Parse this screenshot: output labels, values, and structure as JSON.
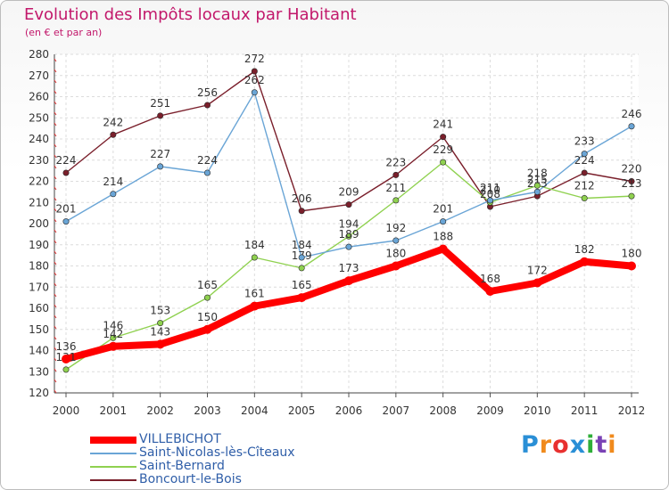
{
  "header": {
    "title": "Evolution des Impôts locaux par Habitant",
    "subtitle": "(en € et par an)"
  },
  "logo": {
    "letters": [
      "P",
      "r",
      "o",
      "x",
      "i",
      "t",
      "i"
    ],
    "colors": [
      "#2a8fd6",
      "#f08a1c",
      "#e8302f",
      "#2a8fd6",
      "#2fae39",
      "#7a42b5",
      "#f08a1c"
    ]
  },
  "chart_data": {
    "type": "line",
    "title": "Evolution des Impôts locaux par Habitant",
    "subtitle": "(en € et par an)",
    "xlabel": "",
    "ylabel": "",
    "ylim": [
      120,
      280
    ],
    "yticks": [
      120,
      130,
      140,
      150,
      160,
      170,
      180,
      190,
      200,
      210,
      220,
      230,
      240,
      250,
      260,
      270,
      280
    ],
    "grid": true,
    "legend_position": "bottom-left",
    "categories": [
      "2000",
      "2001",
      "2002",
      "2003",
      "2004",
      "2005",
      "2006",
      "2007",
      "2008",
      "2009",
      "2010",
      "2011",
      "2012"
    ],
    "series": [
      {
        "name": "Boncourt-le-Bois",
        "color": "#7a1f2b",
        "values": [
          224,
          242,
          251,
          256,
          272,
          206,
          209,
          223,
          241,
          208,
          213,
          224,
          220
        ]
      },
      {
        "name": "Saint-Bernard",
        "color": "#8fd14f",
        "values": [
          131,
          146,
          153,
          165,
          184,
          179,
          194,
          211,
          229,
          210,
          218,
          212,
          213
        ]
      },
      {
        "name": "Saint-Nicolas-lès-Cîteaux",
        "color": "#6aa5d6",
        "values": [
          201,
          214,
          227,
          224,
          262,
          184,
          189,
          192,
          201,
          211,
          215,
          233,
          246
        ]
      },
      {
        "name": "VILLEBICHOT",
        "color": "#ff0000",
        "values": [
          136,
          142,
          143,
          150,
          161,
          165,
          173,
          180,
          188,
          168,
          172,
          182,
          180
        ]
      }
    ],
    "legend_order": [
      "VILLEBICHOT",
      "Saint-Nicolas-lès-Cîteaux",
      "Saint-Bernard",
      "Boncourt-le-Bois"
    ]
  }
}
